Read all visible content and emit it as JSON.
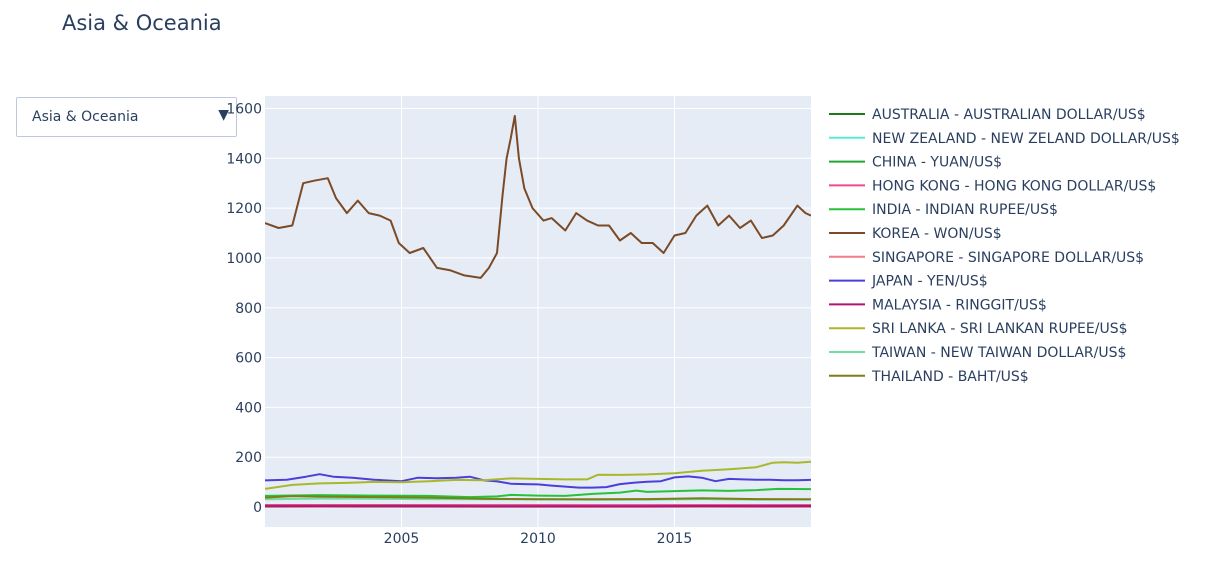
{
  "title": "Asia & Oceania",
  "dropdown": {
    "selected": "Asia & Oceania",
    "arrow": "▼"
  },
  "colors": {
    "plot_bg": "#e5ecf6",
    "grid": "#ffffff",
    "text": "#2a3f5f"
  },
  "chart_data": {
    "type": "line",
    "title": "Asia & Oceania",
    "xlabel": "",
    "ylabel": "",
    "xlim": [
      2000.0,
      2020.0
    ],
    "ylim": [
      -80,
      1650
    ],
    "x_ticks": [
      2005,
      2010,
      2015
    ],
    "y_ticks": [
      0,
      200,
      400,
      600,
      800,
      1000,
      1200,
      1400,
      1600
    ],
    "y_tick_labels": [
      "0",
      "200",
      "400",
      "600",
      "800",
      "1000",
      "1200",
      "1400",
      "1600"
    ],
    "grid": true,
    "legend_position": "right",
    "series": [
      {
        "name": "AUSTRALIA - AUSTRALIAN DOLLAR/US$",
        "color": "#1a7a16",
        "x": [
          2000,
          2002,
          2004,
          2006,
          2008,
          2010,
          2012,
          2014,
          2016,
          2018,
          2020
        ],
        "y": [
          1.6,
          1.9,
          1.4,
          1.35,
          1.2,
          1.1,
          1.0,
          1.1,
          1.35,
          1.3,
          1.5
        ]
      },
      {
        "name": "NEW ZEALAND - NEW ZELAND DOLLAR/US$",
        "color": "#5de8d6",
        "x": [
          2000,
          2002,
          2004,
          2006,
          2008,
          2010,
          2012,
          2014,
          2016,
          2018,
          2020
        ],
        "y": [
          2.0,
          2.3,
          1.6,
          1.5,
          1.4,
          1.35,
          1.25,
          1.2,
          1.45,
          1.4,
          1.6
        ]
      },
      {
        "name": "CHINA - YUAN/US$",
        "color": "#1ea832",
        "x": [
          2000,
          2004,
          2005.5,
          2008,
          2010,
          2012,
          2014,
          2016,
          2018,
          2020
        ],
        "y": [
          8.3,
          8.3,
          8.1,
          6.9,
          6.8,
          6.3,
          6.1,
          6.6,
          6.6,
          7.0
        ]
      },
      {
        "name": "HONG KONG - HONG KONG DOLLAR/US$",
        "color": "#ec4a8c",
        "x": [
          2000,
          2004,
          2008,
          2012,
          2016,
          2020
        ],
        "y": [
          7.8,
          7.8,
          7.8,
          7.76,
          7.76,
          7.8
        ]
      },
      {
        "name": "INDIA - INDIAN RUPEE/US$",
        "color": "#28c23a",
        "x": [
          2000,
          2002,
          2004,
          2006,
          2007.5,
          2008.5,
          2009,
          2010,
          2011,
          2012,
          2013,
          2013.6,
          2014,
          2015,
          2016,
          2017,
          2018,
          2018.8,
          2020
        ],
        "y": [
          45,
          48,
          46,
          45,
          40,
          43,
          49,
          46,
          45,
          53,
          58,
          66,
          61,
          64,
          67,
          65,
          68,
          73,
          72
        ]
      },
      {
        "name": "KOREA - WON/US$",
        "color": "#7b4a26",
        "x": [
          2000,
          2000.5,
          2001,
          2001.4,
          2001.8,
          2002.3,
          2002.6,
          2003,
          2003.4,
          2003.8,
          2004.2,
          2004.6,
          2004.9,
          2005.3,
          2005.8,
          2006.3,
          2006.8,
          2007.3,
          2007.9,
          2008.2,
          2008.5,
          2008.7,
          2008.85,
          2009.0,
          2009.15,
          2009.3,
          2009.5,
          2009.8,
          2010.2,
          2010.5,
          2011.0,
          2011.4,
          2011.8,
          2012.2,
          2012.6,
          2013.0,
          2013.4,
          2013.8,
          2014.2,
          2014.6,
          2015.0,
          2015.4,
          2015.8,
          2016.2,
          2016.6,
          2017.0,
          2017.4,
          2017.8,
          2018.2,
          2018.6,
          2019.0,
          2019.5,
          2019.8,
          2020.0
        ],
        "y": [
          1140,
          1120,
          1130,
          1300,
          1310,
          1320,
          1240,
          1180,
          1230,
          1180,
          1170,
          1150,
          1060,
          1020,
          1040,
          960,
          950,
          930,
          920,
          960,
          1020,
          1250,
          1400,
          1480,
          1570,
          1400,
          1280,
          1200,
          1150,
          1160,
          1110,
          1180,
          1150,
          1130,
          1130,
          1070,
          1100,
          1060,
          1060,
          1020,
          1090,
          1100,
          1170,
          1210,
          1130,
          1170,
          1120,
          1150,
          1080,
          1090,
          1130,
          1210,
          1180,
          1170
        ]
      },
      {
        "name": "SINGAPORE - SINGAPORE DOLLAR/US$",
        "color": "#ef7c86",
        "x": [
          2000,
          2004,
          2008,
          2012,
          2016,
          2020
        ],
        "y": [
          1.7,
          1.7,
          1.45,
          1.25,
          1.38,
          1.36
        ]
      },
      {
        "name": "JAPAN - YEN/US$",
        "color": "#4b3fd8",
        "x": [
          2000,
          2000.8,
          2001.5,
          2002.0,
          2002.5,
          2003.2,
          2004.0,
          2005.0,
          2005.6,
          2006.3,
          2007.0,
          2007.5,
          2008.0,
          2008.5,
          2009.0,
          2009.5,
          2010.0,
          2010.5,
          2011.0,
          2011.5,
          2012.0,
          2012.5,
          2013.0,
          2013.5,
          2014.0,
          2014.5,
          2015.0,
          2015.5,
          2016.0,
          2016.5,
          2017.0,
          2017.5,
          2018.0,
          2018.5,
          2019.0,
          2019.5,
          2020.0
        ],
        "y": [
          107,
          110,
          122,
          132,
          122,
          118,
          110,
          104,
          118,
          116,
          118,
          122,
          108,
          103,
          94,
          92,
          91,
          86,
          82,
          78,
          78,
          80,
          92,
          98,
          102,
          104,
          119,
          123,
          118,
          104,
          113,
          111,
          110,
          110,
          108,
          108,
          109
        ]
      },
      {
        "name": "MALAYSIA - RINGGIT/US$",
        "color": "#b0147c",
        "x": [
          2000,
          2004,
          2006,
          2008,
          2010,
          2012,
          2014,
          2016,
          2018,
          2020
        ],
        "y": [
          3.8,
          3.8,
          3.7,
          3.3,
          3.2,
          3.1,
          3.2,
          4.1,
          4.0,
          4.2
        ]
      },
      {
        "name": "SRI LANKA - SRI LANKAN RUPEE/US$",
        "color": "#a9b82b",
        "x": [
          2000,
          2001,
          2002,
          2003,
          2004,
          2005,
          2006,
          2007,
          2008,
          2009,
          2010,
          2011,
          2011.8,
          2012.2,
          2013,
          2014,
          2015,
          2016,
          2017,
          2018,
          2018.6,
          2019.0,
          2019.5,
          2020.0
        ],
        "y": [
          73,
          89,
          95,
          97,
          101,
          100,
          104,
          109,
          108,
          115,
          113,
          111,
          111,
          130,
          129,
          131,
          136,
          146,
          152,
          160,
          178,
          180,
          178,
          182
        ]
      },
      {
        "name": "TAIWAN - NEW TAIWAN DOLLAR/US$",
        "color": "#71dda0",
        "x": [
          2000,
          2002,
          2004,
          2006,
          2008,
          2010,
          2012,
          2014,
          2016,
          2018,
          2020
        ],
        "y": [
          31,
          34,
          33,
          32,
          31,
          31,
          29,
          30,
          32,
          30,
          30
        ]
      },
      {
        "name": "THAILAND - BAHT/US$",
        "color": "#7c7f16",
        "x": [
          2000,
          2001,
          2002,
          2004,
          2006,
          2008,
          2010,
          2012,
          2014,
          2016,
          2018,
          2020
        ],
        "y": [
          38,
          44,
          42,
          40,
          38,
          33,
          31,
          31,
          32,
          35,
          32,
          31
        ]
      }
    ]
  }
}
